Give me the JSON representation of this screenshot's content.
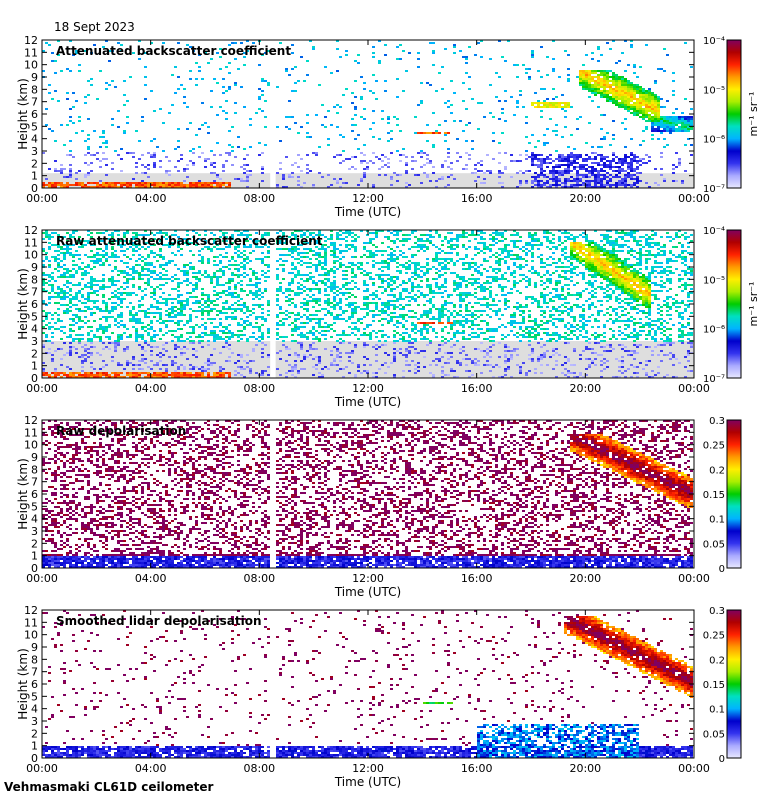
{
  "figure": {
    "date": "18 Sept 2023",
    "footer": "Vehmasmaki CL61D ceilometer"
  },
  "colors": {
    "no_data": "#ffffff",
    "low_background": "#dedede",
    "colormap": [
      "#e8e8ff",
      "#aaaaff",
      "#3333ee",
      "#0000cc",
      "#00b4ff",
      "#00e0c0",
      "#00cc00",
      "#aaee00",
      "#ffee00",
      "#ff9900",
      "#ff2200",
      "#b00000",
      "#800060"
    ]
  },
  "chart_data": [
    {
      "type": "heatmap",
      "title": "Attenuated backscatter coefficient",
      "xlabel": "Time (UTC)",
      "ylabel": "Height (km)",
      "x_ticks": [
        "00:00",
        "04:00",
        "08:00",
        "12:00",
        "16:00",
        "20:00",
        "00:00"
      ],
      "xlim_hours": [
        0,
        24
      ],
      "y_ticks": [
        "0",
        "1",
        "2",
        "3",
        "4",
        "5",
        "6",
        "7",
        "8",
        "9",
        "10",
        "11",
        "12"
      ],
      "ylim_km": [
        0,
        12
      ],
      "colorbar": {
        "scale": "log",
        "unit": "m⁻¹ sr⁻¹",
        "ticks": [
          "10⁻⁴",
          "10⁻⁵",
          "10⁻⁶",
          "10⁻⁷"
        ],
        "range": [
          1e-07,
          0.0001
        ]
      },
      "gap_hours": [
        8.4,
        8.6
      ],
      "features": [
        {
          "kind": "cloud",
          "t": [
            19.8,
            22.8
          ],
          "h": [
            5.3,
            9.5
          ],
          "value": 0.72
        },
        {
          "kind": "cloud",
          "t": [
            22.5,
            24
          ],
          "h": [
            4.5,
            5.8
          ],
          "value": 0.45
        },
        {
          "kind": "layer",
          "t": [
            13.8,
            15.2
          ],
          "h": [
            4.3,
            4.6
          ],
          "value": 0.8
        },
        {
          "kind": "layer",
          "t": [
            18.0,
            19.5
          ],
          "h": [
            6.5,
            6.9
          ],
          "value": 0.65
        },
        {
          "kind": "boundary",
          "t": [
            0,
            7
          ],
          "h": [
            0,
            0.5
          ],
          "value": 0.8
        },
        {
          "kind": "rain-band",
          "t": [
            18.0,
            22.0
          ],
          "h": [
            0,
            2.8
          ],
          "value": 0.18
        }
      ]
    },
    {
      "type": "heatmap",
      "title": "Raw attenuated backscatter coefficient",
      "xlabel": "Time (UTC)",
      "ylabel": "Height (km)",
      "x_ticks": [
        "00:00",
        "04:00",
        "08:00",
        "12:00",
        "16:00",
        "20:00",
        "00:00"
      ],
      "xlim_hours": [
        0,
        24
      ],
      "y_ticks": [
        "0",
        "1",
        "2",
        "3",
        "4",
        "5",
        "6",
        "7",
        "8",
        "9",
        "10",
        "11",
        "12"
      ],
      "ylim_km": [
        0,
        12
      ],
      "colorbar": {
        "scale": "log",
        "unit": "m⁻¹ sr⁻¹",
        "ticks": [
          "10⁻⁴",
          "10⁻⁵",
          "10⁻⁶",
          "10⁻⁷"
        ],
        "range": [
          1e-07,
          0.0001
        ]
      },
      "gap_hours": [
        8.4,
        8.6
      ],
      "features": [
        {
          "kind": "cloud",
          "t": [
            19.5,
            22.5
          ],
          "h": [
            5.5,
            11.0
          ],
          "value": 0.72
        },
        {
          "kind": "layer",
          "t": [
            13.8,
            15.2
          ],
          "h": [
            4.3,
            4.6
          ],
          "value": 0.8
        },
        {
          "kind": "boundary",
          "t": [
            0,
            7
          ],
          "h": [
            0,
            0.5
          ],
          "value": 0.8
        },
        {
          "kind": "noise",
          "t": [
            0,
            24
          ],
          "h": [
            3,
            12
          ],
          "value": 0.4
        }
      ]
    },
    {
      "type": "heatmap",
      "title": "Raw depolarisation",
      "xlabel": "Time (UTC)",
      "ylabel": "Height (km)",
      "x_ticks": [
        "00:00",
        "04:00",
        "08:00",
        "12:00",
        "16:00",
        "20:00",
        "00:00"
      ],
      "xlim_hours": [
        0,
        24
      ],
      "y_ticks": [
        "0",
        "1",
        "2",
        "3",
        "4",
        "5",
        "6",
        "7",
        "8",
        "9",
        "10",
        "11",
        "12"
      ],
      "ylim_km": [
        0,
        12
      ],
      "colorbar": {
        "scale": "linear",
        "unit": "",
        "ticks": [
          "0.3",
          "0.25",
          "0.2",
          "0.15",
          "0.1",
          "0.05",
          "0"
        ],
        "range": [
          0,
          0.3
        ]
      },
      "gap_hours": [
        8.4,
        8.6
      ],
      "features": [
        {
          "kind": "cloud",
          "t": [
            19.5,
            24
          ],
          "h": [
            4.8,
            10.8
          ],
          "value": 1.0
        },
        {
          "kind": "noise",
          "t": [
            0,
            24
          ],
          "h": [
            1,
            12
          ],
          "value": 1.0
        },
        {
          "kind": "boundary",
          "t": [
            0,
            24
          ],
          "h": [
            0,
            1.2
          ],
          "value": 0.2
        }
      ]
    },
    {
      "type": "heatmap",
      "title": "Smoothed lidar depolarisation",
      "xlabel": "Time (UTC)",
      "ylabel": "Height (km)",
      "x_ticks": [
        "00:00",
        "04:00",
        "08:00",
        "12:00",
        "16:00",
        "20:00",
        "00:00"
      ],
      "xlim_hours": [
        0,
        24
      ],
      "y_ticks": [
        "0",
        "1",
        "2",
        "3",
        "4",
        "5",
        "6",
        "7",
        "8",
        "9",
        "10",
        "11",
        "12"
      ],
      "ylim_km": [
        0,
        12
      ],
      "colorbar": {
        "scale": "linear",
        "unit": "",
        "ticks": [
          "0.3",
          "0.25",
          "0.2",
          "0.15",
          "0.1",
          "0.05",
          "0"
        ],
        "range": [
          0,
          0.3
        ]
      },
      "gap_hours": [
        8.4,
        8.6
      ],
      "features": [
        {
          "kind": "cloud",
          "t": [
            19.2,
            24
          ],
          "h": [
            4.8,
            11.5
          ],
          "value": 1.0
        },
        {
          "kind": "layer",
          "t": [
            14.0,
            15.2
          ],
          "h": [
            4.3,
            4.6
          ],
          "value": 0.5
        },
        {
          "kind": "boundary",
          "t": [
            0,
            24
          ],
          "h": [
            0,
            1.0
          ],
          "value": 0.2
        },
        {
          "kind": "rain-band",
          "t": [
            16.0,
            22.0
          ],
          "h": [
            0,
            2.8
          ],
          "value": 0.3
        }
      ]
    }
  ]
}
